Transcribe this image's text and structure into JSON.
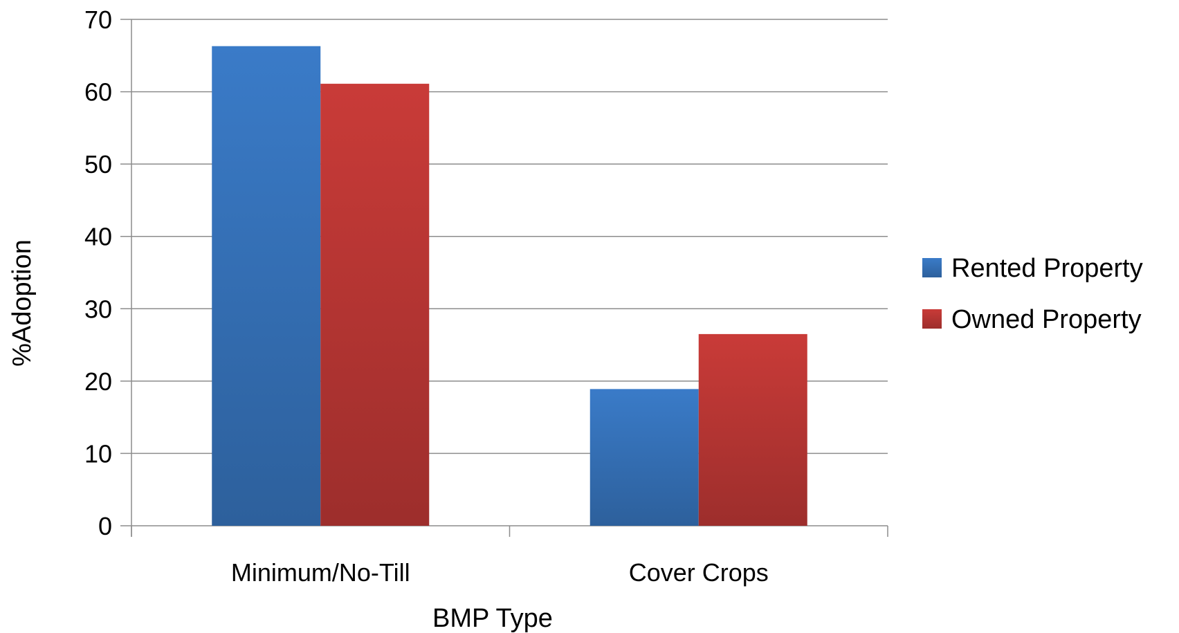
{
  "chart_data": {
    "type": "bar",
    "title": "",
    "xlabel": "BMP Type",
    "ylabel": "%Adoption",
    "categories": [
      "Minimum/No-Till",
      "Cover Crops"
    ],
    "series": [
      {
        "name": "Rented Property",
        "values": [
          66.3,
          18.9
        ],
        "color": "#3a7bc8"
      },
      {
        "name": "Owned Property",
        "values": [
          61.1,
          26.5
        ],
        "color": "#c93b38"
      }
    ],
    "ylim": [
      0,
      70
    ],
    "yticks": [
      0,
      10,
      20,
      30,
      40,
      50,
      60,
      70
    ],
    "grid": true,
    "legend": "right"
  }
}
